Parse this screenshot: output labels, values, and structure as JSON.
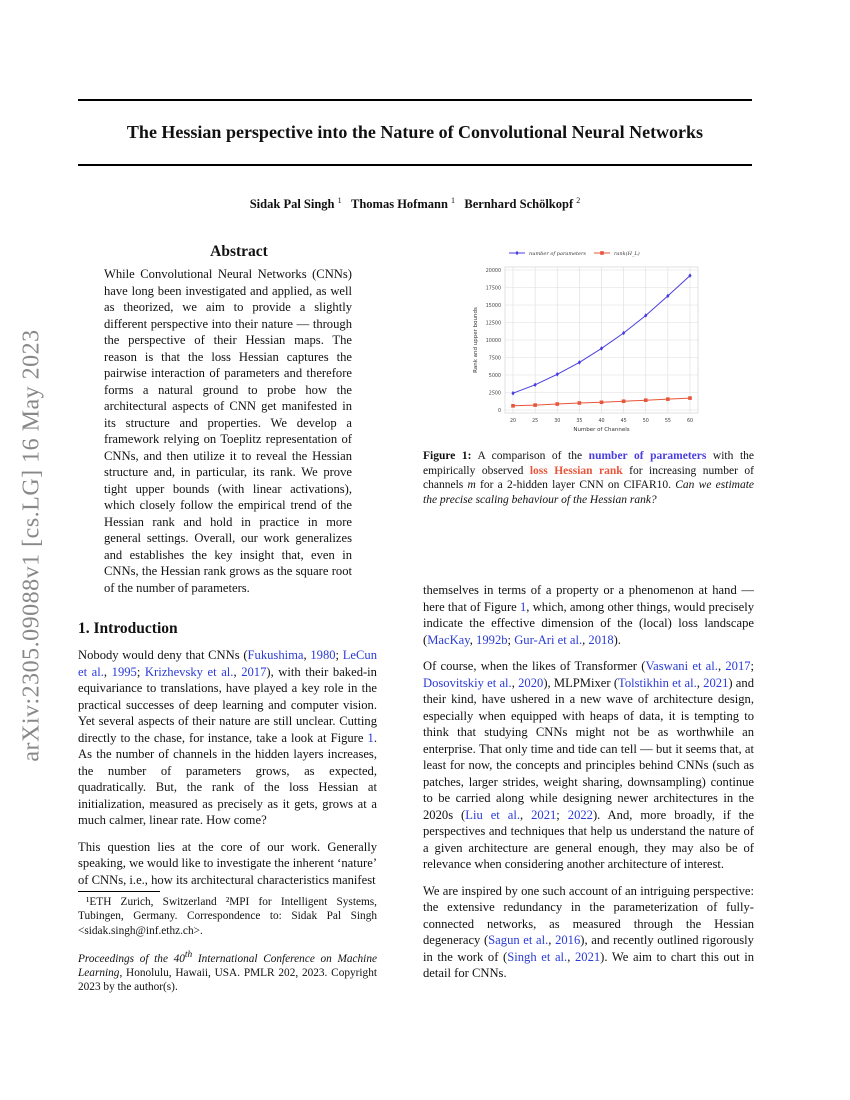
{
  "header": {
    "title": "The Hessian perspective into the Nature of Convolutional Neural Networks",
    "authors": [
      {
        "name": "Sidak Pal Singh",
        "aff": "1"
      },
      {
        "name": "Thomas Hofmann",
        "aff": "1"
      },
      {
        "name": "Bernhard Schölkopf",
        "aff": "2"
      }
    ]
  },
  "side_stamp": "arXiv:2305.09088v1  [cs.LG]  16 May 2023",
  "abstract": {
    "heading": "Abstract",
    "text": "While Convolutional Neural Networks (CNNs) have long been investigated and applied, as well as theorized, we aim to provide a slightly different perspective into their nature — through the perspective of their Hessian maps. The reason is that the loss Hessian captures the pairwise interaction of parameters and therefore forms a natural ground to probe how the architectural aspects of CNN get manifested in its structure and properties. We develop a framework relying on Toeplitz representation of CNNs, and then utilize it to reveal the Hessian structure and, in particular, its rank. We prove tight upper bounds (with linear activations), which closely follow the empirical trend of the Hessian rank and hold in practice in more general settings. Overall, our work generalizes and establishes the key insight that, even in CNNs, the Hessian rank grows as the square root of the number of parameters."
  },
  "intro_heading": "1. Introduction",
  "left_paragraphs": [
    [
      {
        "t": "Nobody would deny that CNNs ("
      },
      {
        "t": "Fukushima",
        "c": 1
      },
      {
        "t": ", "
      },
      {
        "t": "1980",
        "c": 1
      },
      {
        "t": "; "
      },
      {
        "t": "LeCun et al.",
        "c": 1
      },
      {
        "t": ", "
      },
      {
        "t": "1995",
        "c": 1
      },
      {
        "t": "; "
      },
      {
        "t": "Krizhevsky et al.",
        "c": 1
      },
      {
        "t": ", "
      },
      {
        "t": "2017",
        "c": 1
      },
      {
        "t": "), with their baked-in equivariance to translations, have played a key role in the practical successes of deep learning and computer vision. Yet several aspects of their nature are still unclear. Cutting directly to the chase, for instance, take a look at Figure "
      },
      {
        "t": "1",
        "c": 1
      },
      {
        "t": ". As the number of channels in the hidden layers increases, the number of parameters grows, as expected, quadratically. But, the rank of the loss Hessian at initialization, measured as precisely as it gets, grows at a much calmer, linear rate. How come?"
      }
    ],
    [
      {
        "t": "This question lies at the core of our work. Generally speaking, we would like to investigate the inherent ‘nature’ of CNNs, i.e., how its architectural characteristics manifest"
      }
    ]
  ],
  "footnotes": {
    "affiliations": "¹ETH Zurich, Switzerland ²MPI for Intelligent Systems, Tubingen, Germany. Correspondence to: Sidak Pal Singh <sidak.singh@inf.ethz.ch>.",
    "proceedings_italic_1": "Proceedings of the 40",
    "proceedings_sup": "th",
    "proceedings_italic_2": " International Conference on Machine Learning",
    "proceedings_rest": ", Honolulu, Hawaii, USA. PMLR 202, 2023. Copyright 2023 by the author(s)."
  },
  "right_paragraphs": [
    [
      {
        "t": "themselves in terms of a property or a phenomenon at hand — here that of Figure "
      },
      {
        "t": "1",
        "c": 1
      },
      {
        "t": ", which, among other things, would precisely indicate the effective dimension of the (local) loss landscape ("
      },
      {
        "t": "MacKay",
        "c": 1
      },
      {
        "t": ", "
      },
      {
        "t": "1992b",
        "c": 1
      },
      {
        "t": "; "
      },
      {
        "t": "Gur-Ari et al.",
        "c": 1
      },
      {
        "t": ", "
      },
      {
        "t": "2018",
        "c": 1
      },
      {
        "t": ")."
      }
    ],
    [
      {
        "t": "Of course, when the likes of Transformer ("
      },
      {
        "t": "Vaswani et al.",
        "c": 1
      },
      {
        "t": ", "
      },
      {
        "t": "2017",
        "c": 1
      },
      {
        "t": "; "
      },
      {
        "t": "Dosovitskiy et al.",
        "c": 1
      },
      {
        "t": ", "
      },
      {
        "t": "2020",
        "c": 1
      },
      {
        "t": "), MLPMixer ("
      },
      {
        "t": "Tolstikhin et al.",
        "c": 1
      },
      {
        "t": ", "
      },
      {
        "t": "2021",
        "c": 1
      },
      {
        "t": ") and their kind, have ushered in a new wave of architecture design, especially when equipped with heaps of data, it is tempting to think that studying CNNs might not be as worthwhile an enterprise. That only time and tide can tell — but it seems that, at least for now, the concepts and principles behind CNNs (such as patches, larger strides, weight sharing, downsampling) continue to be carried along while designing newer architectures in the 2020s ("
      },
      {
        "t": "Liu et al.",
        "c": 1
      },
      {
        "t": ", "
      },
      {
        "t": "2021",
        "c": 1
      },
      {
        "t": "; "
      },
      {
        "t": "2022",
        "c": 1
      },
      {
        "t": "). And, more broadly, if the perspectives and techniques that help us understand the nature of a given architecture are general enough, they may also be of relevance when considering another architecture of interest."
      }
    ],
    [
      {
        "t": "We are inspired by one such account of an intriguing perspective: the extensive redundancy in the parameterization of fully-connected networks, as measured through the Hessian degeneracy ("
      },
      {
        "t": "Sagun et al.",
        "c": 1
      },
      {
        "t": ", "
      },
      {
        "t": "2016",
        "c": 1
      },
      {
        "t": "), and recently outlined rigorously in the work of ("
      },
      {
        "t": "Singh et al.",
        "c": 1
      },
      {
        "t": ", "
      },
      {
        "t": "2021",
        "c": 1
      },
      {
        "t": "). We aim to chart this out in detail for CNNs."
      }
    ]
  ],
  "figure_caption": {
    "label": "Figure 1:",
    "t1": " A comparison of the ",
    "blue": "number of parameters",
    "t2": " with the empirically observed ",
    "red": "loss Hessian rank",
    "t3": " for increasing number of channels ",
    "m": "m",
    "t4": " for a 2-hidden layer CNN on CIFAR10. ",
    "italic": "Can we estimate the precise scaling behaviour of the Hessian rank?"
  },
  "colors": {
    "citation": "#2a3bd6",
    "params": "#4a3de0",
    "rank": "#e8553a"
  },
  "chart_data": {
    "type": "line",
    "xlabel": "Number of Channels",
    "ylabel": "Rank and upper bounds",
    "x": [
      20,
      25,
      30,
      35,
      40,
      45,
      50,
      55,
      60
    ],
    "xticks": [
      20,
      25,
      30,
      35,
      40,
      45,
      50,
      55,
      60
    ],
    "yticks": [
      0,
      2500,
      5000,
      7500,
      10000,
      12500,
      15000,
      17500,
      20000
    ],
    "ylim": [
      0,
      20000
    ],
    "grid": true,
    "legend": "top",
    "series": [
      {
        "name": "number of parameters",
        "color": "#4a3de0",
        "marker": "diamond",
        "values": [
          2400,
          3600,
          5100,
          6800,
          8800,
          11000,
          13500,
          16300,
          19200
        ]
      },
      {
        "name": "rank(H_L)",
        "color": "#e8553a",
        "marker": "square",
        "values": [
          600,
          700,
          850,
          1000,
          1100,
          1250,
          1400,
          1550,
          1700
        ]
      }
    ]
  }
}
